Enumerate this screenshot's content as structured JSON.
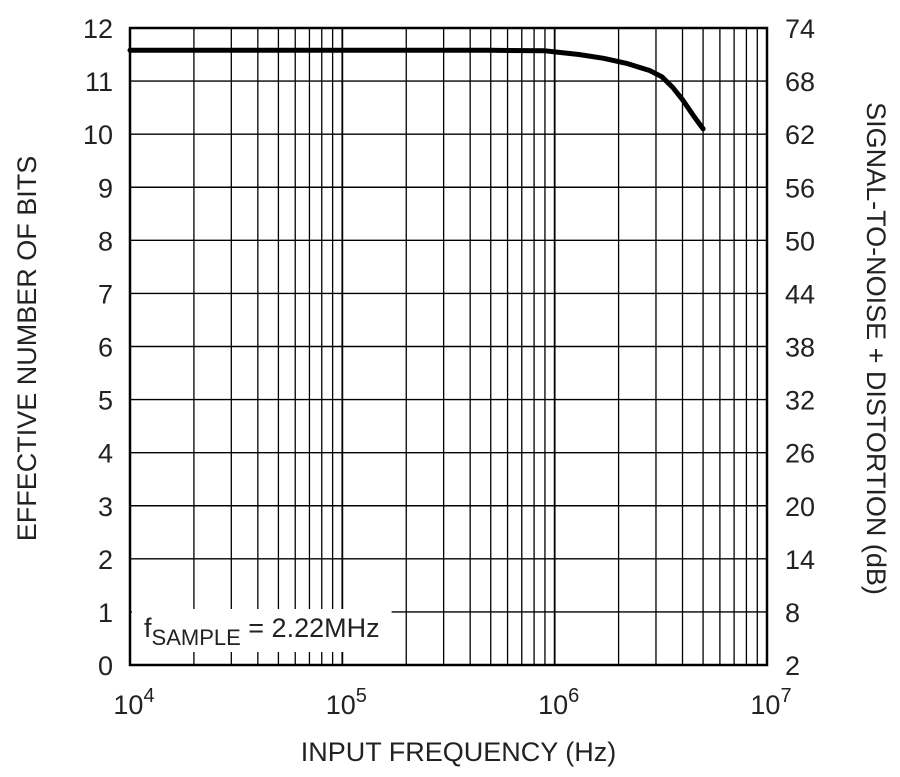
{
  "chart_data": {
    "type": "line",
    "xscale": "log",
    "xlim": [
      10000,
      10000000
    ],
    "ylim": [
      0,
      12
    ],
    "y2lim": [
      2,
      74
    ],
    "xlabel": "INPUT FREQUENCY (Hz)",
    "ylabel": "EFFECTIVE NUMBER OF BITS",
    "y2label": "SIGNAL-TO-NOISE + DISTORTION (dB)",
    "grid": true,
    "x_ticks": [
      {
        "base": "10",
        "exp": "4",
        "value": 10000
      },
      {
        "base": "10",
        "exp": "5",
        "value": 100000
      },
      {
        "base": "10",
        "exp": "6",
        "value": 1000000
      },
      {
        "base": "10",
        "exp": "7",
        "value": 10000000
      }
    ],
    "y_ticks": [
      "0",
      "1",
      "2",
      "3",
      "4",
      "5",
      "6",
      "7",
      "8",
      "9",
      "10",
      "11",
      "12"
    ],
    "y2_ticks": [
      "2",
      "8",
      "14",
      "20",
      "26",
      "32",
      "38",
      "44",
      "50",
      "56",
      "62",
      "68",
      "74"
    ],
    "annotation": {
      "prefix": "f",
      "subscript": "SAMPLE",
      "suffix": " = 2.22MHz"
    },
    "series": [
      {
        "x": [
          10000,
          100000,
          500000,
          900000,
          1000000,
          1300000,
          1700000,
          2200000,
          2800000,
          3200000,
          3600000,
          4000000,
          4500000,
          5000000
        ],
        "y": [
          11.58,
          11.58,
          11.58,
          11.57,
          11.55,
          11.5,
          11.43,
          11.33,
          11.2,
          11.08,
          10.88,
          10.65,
          10.35,
          10.1
        ]
      }
    ]
  }
}
